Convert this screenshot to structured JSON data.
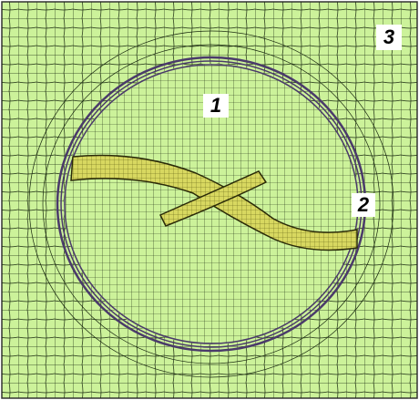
{
  "labels": [
    "1",
    "2",
    "3"
  ]
}
